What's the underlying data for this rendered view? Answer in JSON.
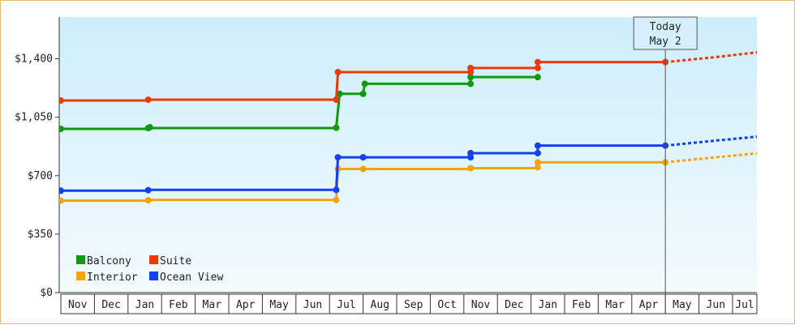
{
  "chart_data": {
    "type": "line",
    "step": true,
    "background_gradient": [
      "#cdeefb",
      "#f4fbfe"
    ],
    "x_months": [
      "Nov",
      "Dec",
      "Jan",
      "Feb",
      "Mar",
      "Apr",
      "May",
      "Jun",
      "Jul",
      "Aug",
      "Sep",
      "Oct",
      "Nov",
      "Dec",
      "Jan",
      "Feb",
      "Mar",
      "Apr",
      "May",
      "Jun",
      "Jul"
    ],
    "yticks": [
      0,
      350,
      700,
      1050,
      1400
    ],
    "ytick_labels": [
      "$0",
      "$350",
      "$700",
      "$1,050",
      "$1,400"
    ],
    "ylim": [
      0,
      1650
    ],
    "today": {
      "line1": "Today",
      "line2": "May 2",
      "x": 18.0
    },
    "series": [
      {
        "name": "Balcony",
        "color": "#0f9a0f",
        "points": [
          [
            0,
            980
          ],
          [
            2.6,
            985
          ],
          [
            8.2,
            987
          ],
          [
            8.3,
            1190
          ],
          [
            9.0,
            1190
          ],
          [
            9.05,
            1250
          ],
          [
            12.2,
            1250
          ],
          [
            12.2,
            1290
          ],
          [
            14.2,
            1290
          ]
        ],
        "markers": [
          [
            0,
            980
          ],
          [
            2.6,
            985
          ],
          [
            2.65,
            990
          ],
          [
            8.2,
            987
          ],
          [
            8.3,
            1190
          ],
          [
            9.0,
            1190
          ],
          [
            9.05,
            1250
          ],
          [
            12.2,
            1250
          ],
          [
            12.2,
            1290
          ],
          [
            14.2,
            1290
          ]
        ]
      },
      {
        "name": "Suite",
        "color": "#ee3a0a",
        "points": [
          [
            0,
            1150
          ],
          [
            2.6,
            1155
          ],
          [
            8.2,
            1155
          ],
          [
            8.25,
            1320
          ],
          [
            12.2,
            1320
          ],
          [
            12.2,
            1345
          ],
          [
            14.2,
            1345
          ],
          [
            14.2,
            1380
          ],
          [
            18.0,
            1380
          ]
        ],
        "markers": [
          [
            0,
            1150
          ],
          [
            2.6,
            1155
          ],
          [
            8.2,
            1155
          ],
          [
            8.25,
            1320
          ],
          [
            12.2,
            1320
          ],
          [
            12.2,
            1345
          ],
          [
            14.2,
            1345
          ],
          [
            14.2,
            1380
          ],
          [
            18.0,
            1380
          ]
        ],
        "forecast": [
          [
            18.0,
            1380
          ],
          [
            19.5,
            1410
          ],
          [
            20.8,
            1440
          ],
          [
            21.4,
            1445
          ]
        ]
      },
      {
        "name": "Interior",
        "color": "#f5a30f",
        "points": [
          [
            0,
            550
          ],
          [
            2.6,
            555
          ],
          [
            8.2,
            555
          ],
          [
            8.25,
            740
          ],
          [
            9.0,
            740
          ],
          [
            12.2,
            745
          ],
          [
            14.2,
            750
          ],
          [
            14.2,
            780
          ],
          [
            18.0,
            780
          ]
        ],
        "markers": [
          [
            0,
            550
          ],
          [
            2.6,
            553
          ],
          [
            8.2,
            555
          ],
          [
            8.25,
            740
          ],
          [
            9.0,
            740
          ],
          [
            12.2,
            745
          ],
          [
            14.2,
            750
          ],
          [
            14.2,
            780
          ],
          [
            18.0,
            780
          ]
        ],
        "forecast": [
          [
            18.0,
            780
          ],
          [
            19.5,
            810
          ],
          [
            20.8,
            835
          ],
          [
            21.4,
            850
          ]
        ]
      },
      {
        "name": "Ocean View",
        "color": "#1240f2",
        "points": [
          [
            0,
            610
          ],
          [
            2.6,
            615
          ],
          [
            8.2,
            615
          ],
          [
            8.25,
            810
          ],
          [
            9.0,
            810
          ],
          [
            12.2,
            810
          ],
          [
            12.2,
            835
          ],
          [
            14.2,
            835
          ],
          [
            14.2,
            880
          ],
          [
            18.0,
            880
          ]
        ],
        "markers": [
          [
            0,
            610
          ],
          [
            2.6,
            613
          ],
          [
            8.2,
            615
          ],
          [
            8.25,
            810
          ],
          [
            9.0,
            810
          ],
          [
            12.2,
            810
          ],
          [
            12.2,
            835
          ],
          [
            14.2,
            835
          ],
          [
            14.2,
            880
          ],
          [
            18.0,
            880
          ]
        ],
        "forecast": [
          [
            18.0,
            880
          ],
          [
            19.5,
            910
          ],
          [
            20.8,
            935
          ],
          [
            21.4,
            950
          ]
        ]
      }
    ],
    "legend": [
      {
        "label": "Balcony",
        "color": "#0f9a0f"
      },
      {
        "label": "Suite",
        "color": "#ee3a0a"
      },
      {
        "label": "Interior",
        "color": "#f5a30f"
      },
      {
        "label": "Ocean View",
        "color": "#1240f2"
      }
    ]
  }
}
